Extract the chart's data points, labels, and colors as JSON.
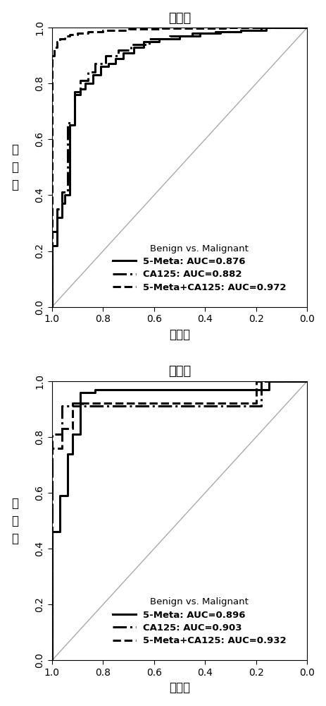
{
  "top_title": "发现组",
  "bottom_title": "验证组",
  "xlabel": "特异性",
  "ylabel": "灵\n敏\n度",
  "legend_title": "Benign vs. Malignant",
  "top_legend": [
    {
      "label": "5-Meta: AUC=0.876",
      "ls": "solid",
      "lw": 2.2
    },
    {
      "label": "CA125: AUC=0.882",
      "ls": "dashdot",
      "lw": 2.2
    },
    {
      "label": "5-Meta+CA125: AUC=0.972",
      "ls": "dashed",
      "lw": 2.2
    }
  ],
  "bottom_legend": [
    {
      "label": "5-Meta: AUC=0.896",
      "ls": "solid",
      "lw": 2.2
    },
    {
      "label": "CA125: AUC=0.903",
      "ls": "dashdot",
      "lw": 2.2
    },
    {
      "label": "5-Meta+CA125: AUC=0.932",
      "ls": "dashed",
      "lw": 2.2
    }
  ],
  "top_roc": {
    "solid_fpr": [
      0.0,
      0.0,
      0.02,
      0.02,
      0.04,
      0.04,
      0.05,
      0.05,
      0.07,
      0.07,
      0.09,
      0.09,
      0.11,
      0.11,
      0.13,
      0.13,
      0.16,
      0.16,
      0.19,
      0.19,
      0.22,
      0.22,
      0.25,
      0.25,
      0.28,
      0.28,
      0.32,
      0.32,
      0.36,
      0.36,
      0.42,
      0.42,
      0.5,
      0.5,
      0.58,
      0.58,
      0.66,
      0.66,
      0.74,
      0.74,
      0.82,
      0.82,
      1.0
    ],
    "solid_tpr": [
      0.0,
      0.22,
      0.22,
      0.32,
      0.32,
      0.37,
      0.37,
      0.4,
      0.4,
      0.65,
      0.65,
      0.76,
      0.76,
      0.78,
      0.78,
      0.8,
      0.8,
      0.83,
      0.83,
      0.86,
      0.86,
      0.87,
      0.87,
      0.89,
      0.89,
      0.91,
      0.91,
      0.93,
      0.93,
      0.95,
      0.95,
      0.96,
      0.96,
      0.97,
      0.97,
      0.98,
      0.98,
      0.985,
      0.985,
      0.99,
      0.99,
      1.0,
      1.0
    ],
    "dashdot_fpr": [
      0.0,
      0.0,
      0.02,
      0.02,
      0.04,
      0.04,
      0.06,
      0.06,
      0.09,
      0.09,
      0.11,
      0.11,
      0.14,
      0.14,
      0.17,
      0.17,
      0.21,
      0.21,
      0.26,
      0.26,
      0.31,
      0.31,
      0.38,
      0.38,
      0.46,
      0.46,
      0.55,
      0.55,
      0.64,
      0.64,
      0.74,
      0.74,
      0.84,
      0.84,
      1.0
    ],
    "dashdot_tpr": [
      0.0,
      0.27,
      0.27,
      0.35,
      0.35,
      0.41,
      0.41,
      0.66,
      0.66,
      0.77,
      0.77,
      0.81,
      0.81,
      0.84,
      0.84,
      0.87,
      0.87,
      0.9,
      0.9,
      0.92,
      0.92,
      0.94,
      0.94,
      0.96,
      0.96,
      0.97,
      0.97,
      0.98,
      0.98,
      0.985,
      0.985,
      0.99,
      0.99,
      1.0,
      1.0
    ],
    "dashed_fpr": [
      0.0,
      0.0,
      0.01,
      0.01,
      0.02,
      0.02,
      0.03,
      0.03,
      0.05,
      0.05,
      0.07,
      0.07,
      0.1,
      0.1,
      0.14,
      0.14,
      0.2,
      0.2,
      0.3,
      0.3,
      0.42,
      0.42,
      0.55,
      0.55,
      0.68,
      0.68,
      0.8,
      0.8,
      1.0
    ],
    "dashed_tpr": [
      0.0,
      0.9,
      0.9,
      0.93,
      0.93,
      0.95,
      0.95,
      0.96,
      0.96,
      0.97,
      0.97,
      0.975,
      0.975,
      0.98,
      0.98,
      0.985,
      0.985,
      0.99,
      0.99,
      0.995,
      0.995,
      0.997,
      0.997,
      0.998,
      0.998,
      0.999,
      0.999,
      1.0,
      1.0
    ]
  },
  "bottom_roc": {
    "solid_fpr": [
      0.0,
      0.0,
      0.03,
      0.03,
      0.06,
      0.06,
      0.08,
      0.08,
      0.11,
      0.11,
      0.17,
      0.17,
      0.85,
      0.85,
      0.9,
      0.9,
      1.0
    ],
    "solid_tpr": [
      0.0,
      0.46,
      0.46,
      0.59,
      0.59,
      0.74,
      0.74,
      0.81,
      0.81,
      0.96,
      0.96,
      0.97,
      0.97,
      1.0,
      1.0,
      1.0,
      1.0
    ],
    "dashdot_fpr": [
      0.0,
      0.0,
      0.04,
      0.04,
      0.08,
      0.08,
      0.12,
      0.12,
      0.82,
      0.82,
      0.88,
      0.88,
      1.0
    ],
    "dashdot_tpr": [
      0.0,
      0.81,
      0.81,
      0.91,
      0.91,
      0.92,
      0.92,
      0.91,
      0.91,
      1.0,
      1.0,
      1.0,
      1.0
    ],
    "dashed_fpr": [
      0.0,
      0.0,
      0.04,
      0.04,
      0.08,
      0.08,
      0.12,
      0.12,
      0.16,
      0.16,
      0.8,
      0.8,
      0.86,
      0.86,
      1.0
    ],
    "dashed_tpr": [
      0.0,
      0.76,
      0.76,
      0.83,
      0.83,
      0.91,
      0.91,
      0.92,
      0.92,
      0.92,
      0.92,
      1.0,
      1.0,
      1.0,
      1.0
    ]
  },
  "diag_color": "#aaaaaa",
  "curve_color": "#000000",
  "bg_color": "#ffffff",
  "tick_fontsize": 10,
  "label_fontsize": 12,
  "title_fontsize": 13,
  "legend_fontsize": 9.5
}
